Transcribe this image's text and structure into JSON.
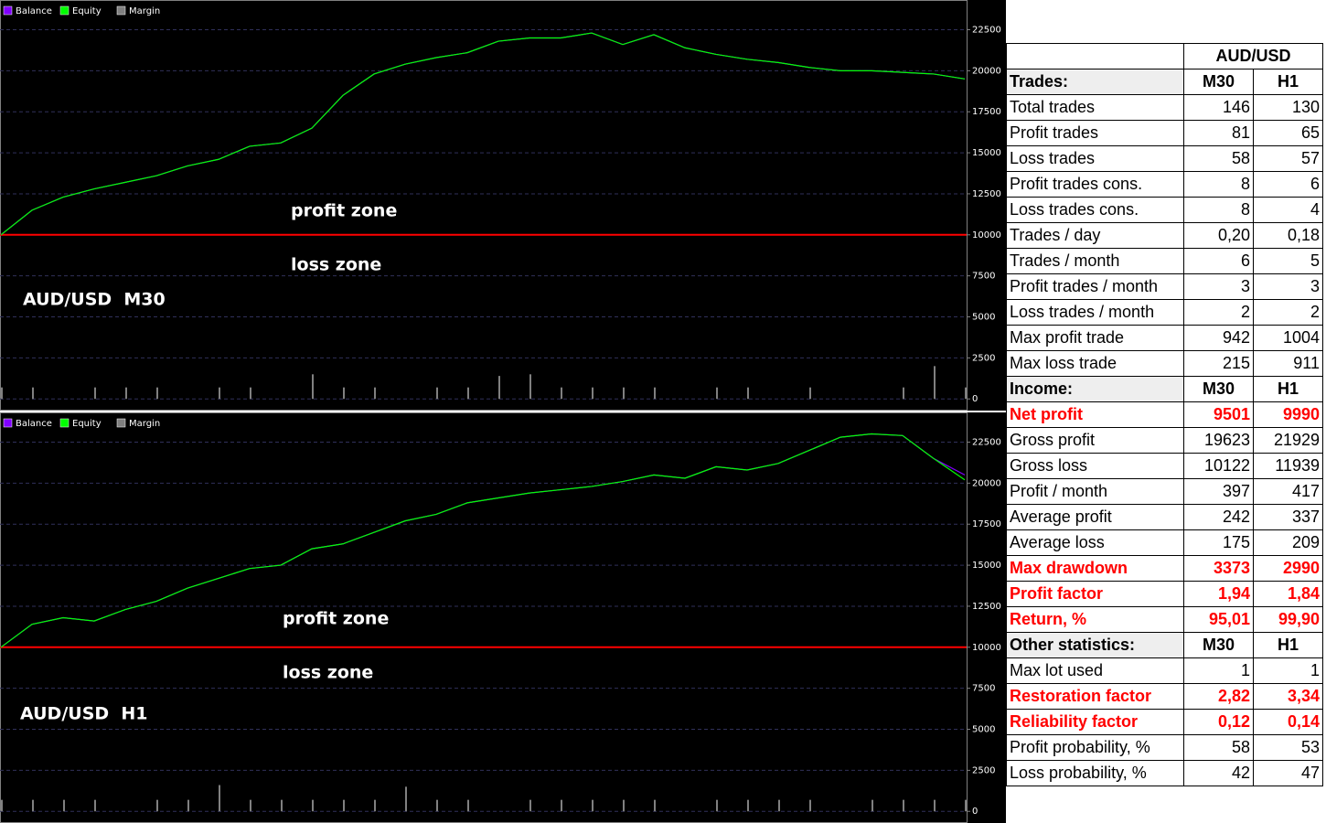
{
  "chart_data": [
    {
      "type": "line",
      "legend": "top-left",
      "grid": true,
      "ylim": [
        -600,
        24200
      ],
      "yticks": [
        0,
        2500,
        5000,
        7500,
        10000,
        12500,
        15000,
        17500,
        20000,
        22500
      ],
      "reference_line": {
        "value": 10000,
        "color": "#ff0000"
      },
      "annotations": [
        "profit zone",
        "loss zone",
        "AUD/USD  M30"
      ],
      "series": [
        {
          "name": "Balance",
          "color": "#8000ff",
          "style": "line",
          "values": [
            10000,
            11500,
            12300,
            12800,
            13200,
            13600,
            14200,
            14600,
            15400,
            15600,
            16500,
            18500,
            19800,
            20400,
            20800,
            21100,
            21800,
            22000,
            22000,
            22300,
            21600,
            22200,
            21400,
            21000,
            20700,
            20500,
            20200,
            20000,
            20000,
            19900,
            19800,
            19500
          ]
        },
        {
          "name": "Equity",
          "color": "#00ff00",
          "style": "line",
          "values": [
            10000,
            11500,
            12300,
            12800,
            13200,
            13600,
            14200,
            14600,
            15400,
            15600,
            16500,
            18500,
            19800,
            20400,
            20800,
            21100,
            21800,
            22000,
            22000,
            22300,
            21600,
            22200,
            21400,
            21000,
            20700,
            20500,
            20200,
            20000,
            20000,
            19900,
            19800,
            19500
          ]
        },
        {
          "name": "Margin",
          "color": "#808080",
          "style": "bar",
          "values": [
            700,
            700,
            0,
            700,
            700,
            700,
            0,
            700,
            700,
            0,
            1500,
            700,
            700,
            0,
            700,
            700,
            1400,
            1500,
            700,
            700,
            700,
            700,
            0,
            700,
            700,
            0,
            700,
            0,
            0,
            700,
            2000,
            700
          ]
        }
      ]
    },
    {
      "type": "line",
      "legend": "top-left",
      "grid": true,
      "ylim": [
        -600,
        24200
      ],
      "yticks": [
        0,
        2500,
        5000,
        7500,
        10000,
        12500,
        15000,
        17500,
        20000,
        22500
      ],
      "reference_line": {
        "value": 10000,
        "color": "#ff0000"
      },
      "annotations": [
        "profit zone",
        "loss zone",
        "AUD/USD  H1"
      ],
      "series": [
        {
          "name": "Balance",
          "color": "#8000ff",
          "style": "line",
          "values": [
            10000,
            11400,
            11800,
            11600,
            12300,
            12800,
            13600,
            14200,
            14800,
            15000,
            16000,
            16300,
            17000,
            17700,
            18100,
            18800,
            19100,
            19400,
            19600,
            19800,
            20100,
            20500,
            20300,
            21000,
            20800,
            21200,
            22000,
            22800,
            23000,
            22900,
            21500,
            20500
          ]
        },
        {
          "name": "Equity",
          "color": "#00ff00",
          "style": "line",
          "values": [
            10000,
            11400,
            11800,
            11600,
            12300,
            12800,
            13600,
            14200,
            14800,
            15000,
            16000,
            16300,
            17000,
            17700,
            18100,
            18800,
            19100,
            19400,
            19600,
            19800,
            20100,
            20500,
            20300,
            21000,
            20800,
            21200,
            22000,
            22800,
            23000,
            22900,
            21500,
            20200
          ]
        },
        {
          "name": "Margin",
          "color": "#808080",
          "style": "bar",
          "values": [
            700,
            700,
            700,
            700,
            0,
            700,
            700,
            1600,
            700,
            700,
            700,
            700,
            700,
            1500,
            700,
            700,
            0,
            700,
            700,
            700,
            700,
            700,
            0,
            700,
            700,
            700,
            700,
            0,
            700,
            700,
            700,
            700
          ]
        }
      ]
    }
  ],
  "table": {
    "title": "AUD/USD",
    "sections": [
      {
        "header": [
          "Trades:",
          "M30",
          "H1"
        ],
        "rows": [
          {
            "cells": [
              "Total trades",
              "146",
              "130"
            ]
          },
          {
            "cells": [
              "Profit trades",
              "81",
              "65"
            ]
          },
          {
            "cells": [
              "Loss trades",
              "58",
              "57"
            ]
          },
          {
            "cells": [
              "Profit trades cons.",
              "8",
              "6"
            ]
          },
          {
            "cells": [
              "Loss trades cons.",
              "8",
              "4"
            ]
          },
          {
            "cells": [
              "Trades / day",
              "0,20",
              "0,18"
            ]
          },
          {
            "cells": [
              "Trades / month",
              "6",
              "5"
            ]
          },
          {
            "cells": [
              "Profit trades / month",
              "3",
              "3"
            ]
          },
          {
            "cells": [
              "Loss trades / month",
              "2",
              "2"
            ]
          },
          {
            "cells": [
              "Max profit trade",
              "942",
              "1004"
            ]
          },
          {
            "cells": [
              "Max loss trade",
              "215",
              "911"
            ]
          }
        ]
      },
      {
        "header": [
          "Income:",
          "M30",
          "H1"
        ],
        "rows": [
          {
            "cells": [
              "Net profit",
              "9501",
              "9990"
            ],
            "color": "#ff0000"
          },
          {
            "cells": [
              "Gross profit",
              "19623",
              "21929"
            ]
          },
          {
            "cells": [
              "Gross loss",
              "10122",
              "11939"
            ]
          },
          {
            "cells": [
              "Profit / month",
              "397",
              "417"
            ]
          },
          {
            "cells": [
              "Average profit",
              "242",
              "337"
            ]
          },
          {
            "cells": [
              "Average loss",
              "175",
              "209"
            ]
          },
          {
            "cells": [
              "Max drawdown",
              "3373",
              "2990"
            ],
            "color": "#ff0000"
          },
          {
            "cells": [
              "Profit factor",
              "1,94",
              "1,84"
            ],
            "color": "#ff0000"
          },
          {
            "cells": [
              "Return, %",
              "95,01",
              "99,90"
            ],
            "color": "#ff0000"
          }
        ]
      },
      {
        "header": [
          "Other statistics:",
          "M30",
          "H1"
        ],
        "rows": [
          {
            "cells": [
              "Max lot used",
              "1",
              "1"
            ]
          },
          {
            "cells": [
              "Restoration factor",
              "2,82",
              "3,34"
            ],
            "color": "#ff0000"
          },
          {
            "cells": [
              "Reliability factor",
              "0,12",
              "0,14"
            ],
            "color": "#ff0000"
          },
          {
            "cells": [
              "Profit probability, %",
              "58",
              "53"
            ]
          },
          {
            "cells": [
              "Loss probability, %",
              "42",
              "47"
            ]
          }
        ]
      }
    ]
  }
}
